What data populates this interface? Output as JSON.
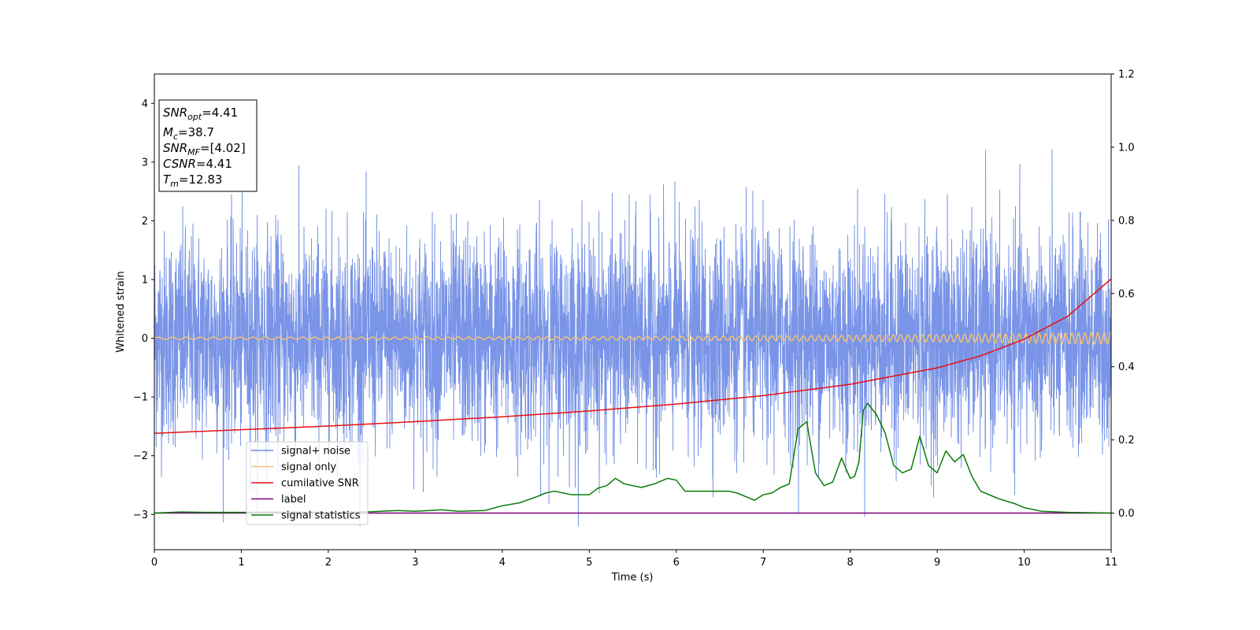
{
  "chart_data": {
    "type": "line",
    "xlabel": "Time (s)",
    "ylabel": "Whitened strain",
    "xlim": [
      0,
      11
    ],
    "ylim": [
      -3.6,
      4.5
    ],
    "y2lim": [
      -0.1,
      1.2
    ],
    "x_ticks": [
      "0",
      "1",
      "2",
      "3",
      "4",
      "5",
      "6",
      "7",
      "8",
      "9",
      "10",
      "11"
    ],
    "y_ticks": [
      "−3",
      "−2",
      "−1",
      "0",
      "1",
      "2",
      "3",
      "4"
    ],
    "y2_ticks": [
      "0.0",
      "0.2",
      "0.4",
      "0.6",
      "0.8",
      "1.0",
      "1.2"
    ],
    "grid": false,
    "legend_position": "lower-left",
    "stats_box": {
      "lines": [
        {
          "var": "SNR",
          "sub": "opt",
          "val": "=4.41"
        },
        {
          "var": "M",
          "sub": "c",
          "val": "=38.7"
        },
        {
          "var": "SNR",
          "sub": "MF",
          "val": "=[4.02]"
        },
        {
          "var": "CSNR",
          "sub": "",
          "val": "=4.41"
        },
        {
          "var": "T",
          "sub": "m",
          "val": "=12.83"
        }
      ]
    },
    "series": [
      {
        "name": "signal+ noise",
        "axis": "left",
        "color": "#6c8ae4",
        "kind": "noise",
        "sigma": 0.9,
        "note_envelope": [
          -3.2,
          3.5
        ]
      },
      {
        "name": "signal only",
        "axis": "left",
        "color": "#f4c074",
        "kind": "chirp",
        "amplitude_start": 0.02,
        "amplitude_end": 0.1
      },
      {
        "name": "cumilative SNR",
        "axis": "right",
        "color": "#e81010",
        "x": [
          0,
          1,
          2,
          3,
          4,
          5,
          6,
          7,
          8,
          9,
          9.5,
          10,
          10.5,
          11
        ],
        "y": [
          0.218,
          0.228,
          0.238,
          0.25,
          0.263,
          0.279,
          0.298,
          0.321,
          0.352,
          0.397,
          0.43,
          0.475,
          0.538,
          0.64
        ]
      },
      {
        "name": "label",
        "axis": "right",
        "color": "#800080",
        "x": [
          0,
          11
        ],
        "y": [
          0,
          0
        ]
      },
      {
        "name": "signal statistics",
        "axis": "right",
        "color": "#0a7d0a",
        "x": [
          0,
          0.3,
          0.6,
          1,
          1.5,
          2,
          2.5,
          2.8,
          3,
          3.3,
          3.5,
          3.8,
          4,
          4.2,
          4.4,
          4.5,
          4.6,
          4.7,
          4.8,
          5,
          5.1,
          5.2,
          5.3,
          5.4,
          5.5,
          5.6,
          5.75,
          5.9,
          6,
          6.1,
          6.3,
          6.5,
          6.6,
          6.7,
          6.9,
          7,
          7.1,
          7.2,
          7.3,
          7.4,
          7.5,
          7.6,
          7.7,
          7.8,
          7.9,
          8,
          8.05,
          8.1,
          8.15,
          8.2,
          8.3,
          8.4,
          8.5,
          8.6,
          8.7,
          8.8,
          8.9,
          9,
          9.1,
          9.2,
          9.3,
          9.4,
          9.5,
          9.7,
          9.9,
          10,
          10.2,
          10.5,
          11
        ],
        "y": [
          0.0,
          0.003,
          0.002,
          0.002,
          0.003,
          0.002,
          0.004,
          0.007,
          0.005,
          0.009,
          0.005,
          0.007,
          0.02,
          0.028,
          0.045,
          0.055,
          0.06,
          0.055,
          0.05,
          0.05,
          0.068,
          0.075,
          0.095,
          0.08,
          0.075,
          0.07,
          0.08,
          0.095,
          0.09,
          0.06,
          0.06,
          0.06,
          0.06,
          0.055,
          0.035,
          0.05,
          0.055,
          0.07,
          0.08,
          0.23,
          0.25,
          0.11,
          0.075,
          0.085,
          0.15,
          0.095,
          0.1,
          0.14,
          0.28,
          0.3,
          0.27,
          0.22,
          0.13,
          0.11,
          0.12,
          0.21,
          0.13,
          0.11,
          0.17,
          0.14,
          0.16,
          0.1,
          0.06,
          0.04,
          0.025,
          0.015,
          0.005,
          0.002,
          0.0
        ]
      }
    ]
  }
}
